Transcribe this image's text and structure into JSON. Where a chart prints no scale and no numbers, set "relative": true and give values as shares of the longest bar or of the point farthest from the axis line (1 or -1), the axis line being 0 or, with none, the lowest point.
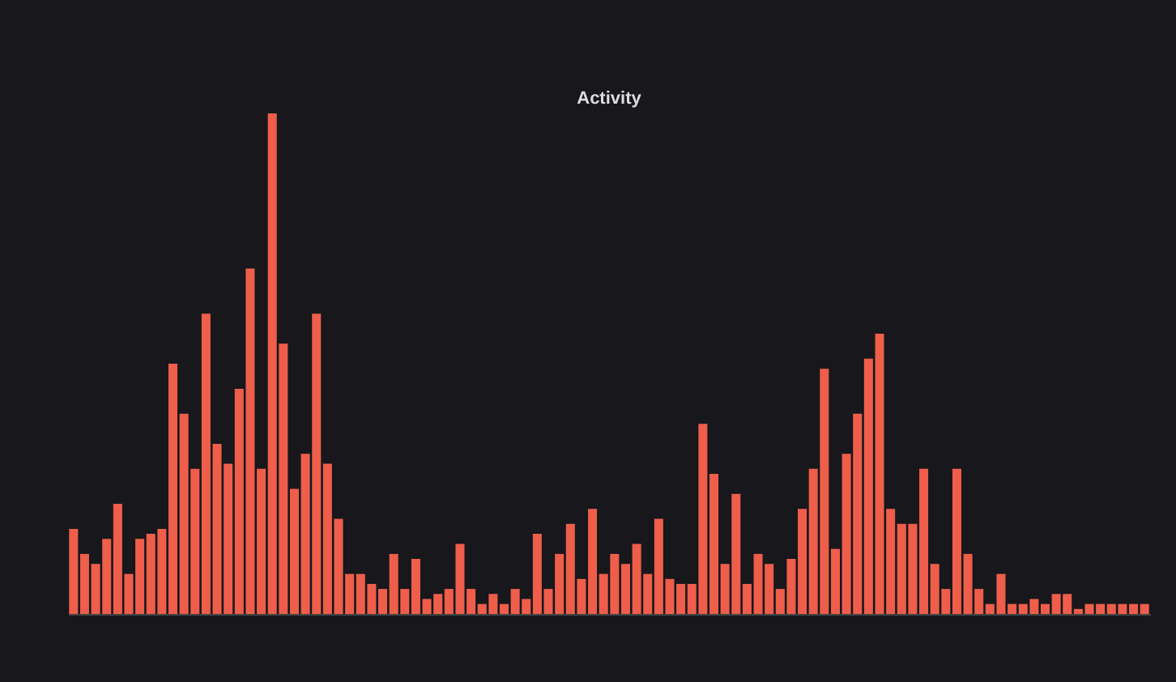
{
  "chart_data": {
    "type": "bar",
    "title": "Activity",
    "relative": true,
    "grid": false,
    "legend": false,
    "categories": [
      null,
      null,
      null,
      null,
      null,
      null,
      null,
      null,
      null,
      null,
      null,
      null,
      null,
      null,
      null,
      null,
      null,
      null,
      null,
      null,
      null,
      null,
      null,
      null,
      null,
      null,
      null,
      null,
      null,
      null,
      null,
      null,
      null,
      null,
      null,
      null,
      null,
      null,
      null,
      null,
      null,
      null,
      null,
      null,
      null,
      null,
      null,
      null,
      null,
      null,
      null,
      null,
      null,
      null,
      null,
      null,
      null,
      null,
      null,
      null,
      null,
      null,
      null,
      null,
      null,
      null,
      null,
      null,
      null,
      null,
      null,
      null,
      null,
      null,
      null,
      null,
      null,
      null,
      null,
      null,
      null,
      null,
      null,
      null,
      null,
      null,
      null,
      null,
      null,
      null,
      null,
      null,
      null,
      null,
      null,
      null,
      null,
      null
    ],
    "series": [
      {
        "color": "#ee5e4a",
        "values": [
          0.17,
          0.12,
          0.1,
          0.15,
          0.22,
          0.08,
          0.15,
          0.16,
          0.17,
          0.5,
          0.4,
          0.29,
          0.6,
          0.34,
          0.3,
          0.45,
          0.69,
          0.29,
          1,
          0.54,
          0.25,
          0.32,
          0.6,
          0.3,
          0.19,
          0.08,
          0.08,
          0.06,
          0.05,
          0.12,
          0.05,
          0.11,
          0.03,
          0.04,
          0.05,
          0.14,
          0.05,
          0.02,
          0.04,
          0.02,
          0.05,
          0.03,
          0.16,
          0.05,
          0.12,
          0.18,
          0.07,
          0.21,
          0.08,
          0.12,
          0.1,
          0.14,
          0.08,
          0.19,
          0.07,
          0.06,
          0.06,
          0.38,
          0.28,
          0.1,
          0.24,
          0.06,
          0.12,
          0.1,
          0.05,
          0.11,
          0.21,
          0.29,
          0.49,
          0.13,
          0.32,
          0.4,
          0.51,
          0.56,
          0.21,
          0.18,
          0.18,
          0.29,
          0.1,
          0.05,
          0.29,
          0.12,
          0.05,
          0.02,
          0.08,
          0.02,
          0.02,
          0.03,
          0.02,
          0.04,
          0.04,
          0.01,
          0.02,
          0.02,
          0.02,
          0.02,
          0.02,
          0.02
        ]
      }
    ]
  }
}
